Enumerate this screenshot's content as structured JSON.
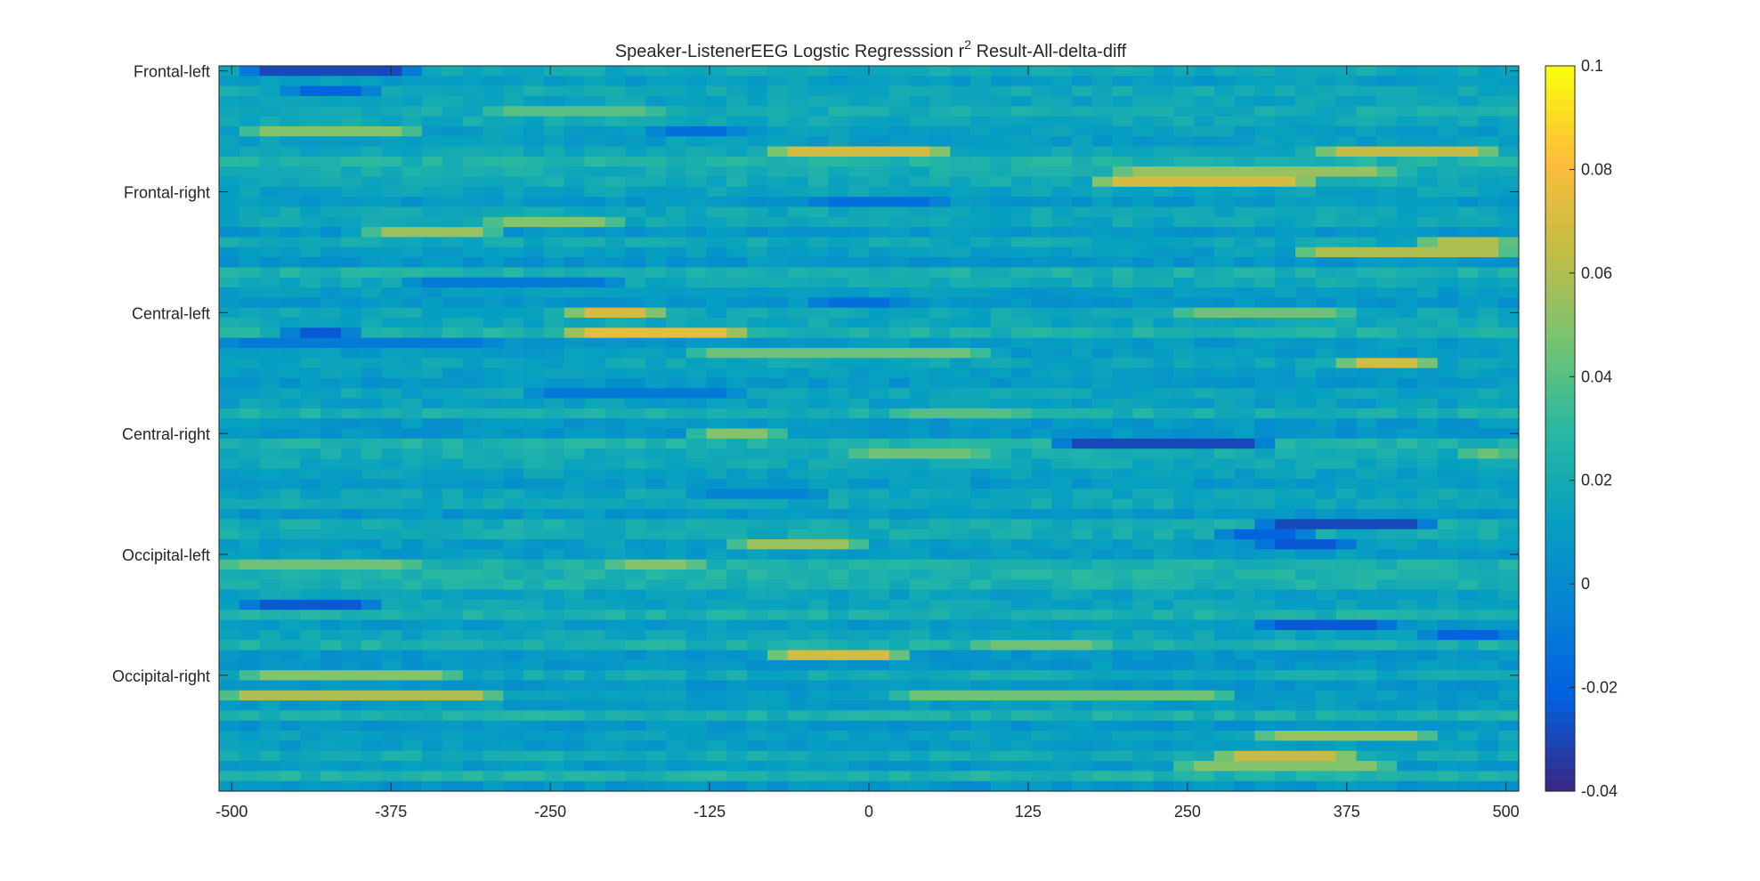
{
  "chart_data": {
    "type": "heatmap",
    "title_main": "Speaker-ListenerEEG Logstic Regresssion r",
    "title_sup": "2",
    "title_rest": " Result-All-delta-diff",
    "x_ticks": [
      -500,
      -375,
      -250,
      -125,
      0,
      125,
      250,
      375,
      500
    ],
    "x_range": [
      -510,
      510
    ],
    "y_labels": [
      "Frontal-left",
      "Frontal-right",
      "Central-left",
      "Central-right",
      "Occipital-left",
      "Occipital-right"
    ],
    "y_label_rows": [
      1,
      13,
      25,
      37,
      49,
      61
    ],
    "n_rows": 72,
    "n_cols": 64,
    "color_range": [
      -0.04,
      0.1
    ],
    "colorbar_ticks": [
      0.1,
      0.08,
      0.06,
      0.04,
      0.02,
      0,
      -0.02,
      -0.04
    ],
    "colormap": "parula",
    "baseline_value": 0.015,
    "bands": [
      {
        "row": 1,
        "col_start": 2,
        "col_end": 10,
        "value": -0.03
      },
      {
        "row": 3,
        "col_start": 4,
        "col_end": 8,
        "value": -0.02
      },
      {
        "row": 5,
        "col_start": 14,
        "col_end": 22,
        "value": 0.04
      },
      {
        "row": 7,
        "col_start": 2,
        "col_end": 10,
        "value": 0.05
      },
      {
        "row": 7,
        "col_start": 22,
        "col_end": 26,
        "value": -0.015
      },
      {
        "row": 9,
        "col_start": 28,
        "col_end": 36,
        "value": 0.07
      },
      {
        "row": 9,
        "col_start": 55,
        "col_end": 63,
        "value": 0.065
      },
      {
        "row": 11,
        "col_start": 45,
        "col_end": 58,
        "value": 0.055
      },
      {
        "row": 12,
        "col_start": 44,
        "col_end": 54,
        "value": 0.07
      },
      {
        "row": 14,
        "col_start": 30,
        "col_end": 36,
        "value": -0.015
      },
      {
        "row": 16,
        "col_start": 14,
        "col_end": 20,
        "value": 0.05
      },
      {
        "row": 17,
        "col_start": 8,
        "col_end": 14,
        "value": 0.055
      },
      {
        "row": 18,
        "col_start": 60,
        "col_end": 64,
        "value": 0.06
      },
      {
        "row": 19,
        "col_start": 54,
        "col_end": 64,
        "value": 0.06
      },
      {
        "row": 22,
        "col_start": 10,
        "col_end": 20,
        "value": -0.01
      },
      {
        "row": 24,
        "col_start": 30,
        "col_end": 34,
        "value": -0.015
      },
      {
        "row": 25,
        "col_start": 18,
        "col_end": 22,
        "value": 0.07
      },
      {
        "row": 25,
        "col_start": 48,
        "col_end": 56,
        "value": 0.045
      },
      {
        "row": 27,
        "col_start": 18,
        "col_end": 26,
        "value": 0.075
      },
      {
        "row": 27,
        "col_start": 4,
        "col_end": 7,
        "value": -0.025
      },
      {
        "row": 28,
        "col_start": 1,
        "col_end": 14,
        "value": -0.01
      },
      {
        "row": 29,
        "col_start": 24,
        "col_end": 38,
        "value": 0.045
      },
      {
        "row": 30,
        "col_start": 56,
        "col_end": 60,
        "value": 0.07
      },
      {
        "row": 33,
        "col_start": 16,
        "col_end": 26,
        "value": -0.01
      },
      {
        "row": 35,
        "col_start": 34,
        "col_end": 40,
        "value": 0.04
      },
      {
        "row": 37,
        "col_start": 24,
        "col_end": 28,
        "value": 0.05
      },
      {
        "row": 38,
        "col_start": 42,
        "col_end": 52,
        "value": -0.03
      },
      {
        "row": 39,
        "col_start": 32,
        "col_end": 38,
        "value": 0.045
      },
      {
        "row": 39,
        "col_start": 62,
        "col_end": 64,
        "value": 0.045
      },
      {
        "row": 43,
        "col_start": 24,
        "col_end": 30,
        "value": -0.005
      },
      {
        "row": 46,
        "col_start": 52,
        "col_end": 60,
        "value": -0.03
      },
      {
        "row": 47,
        "col_start": 50,
        "col_end": 54,
        "value": -0.02
      },
      {
        "row": 48,
        "col_start": 52,
        "col_end": 56,
        "value": -0.025
      },
      {
        "row": 48,
        "col_start": 26,
        "col_end": 32,
        "value": 0.055
      },
      {
        "row": 50,
        "col_start": 1,
        "col_end": 10,
        "value": 0.045
      },
      {
        "row": 50,
        "col_start": 20,
        "col_end": 24,
        "value": 0.05
      },
      {
        "row": 54,
        "col_start": 2,
        "col_end": 8,
        "value": -0.025
      },
      {
        "row": 56,
        "col_start": 52,
        "col_end": 58,
        "value": -0.025
      },
      {
        "row": 57,
        "col_start": 60,
        "col_end": 64,
        "value": -0.02
      },
      {
        "row": 58,
        "col_start": 38,
        "col_end": 44,
        "value": 0.045
      },
      {
        "row": 59,
        "col_start": 28,
        "col_end": 34,
        "value": 0.07
      },
      {
        "row": 61,
        "col_start": 2,
        "col_end": 12,
        "value": 0.05
      },
      {
        "row": 63,
        "col_start": 1,
        "col_end": 14,
        "value": 0.06
      },
      {
        "row": 63,
        "col_start": 34,
        "col_end": 50,
        "value": 0.045
      },
      {
        "row": 67,
        "col_start": 52,
        "col_end": 60,
        "value": 0.055
      },
      {
        "row": 69,
        "col_start": 50,
        "col_end": 56,
        "value": 0.065
      },
      {
        "row": 70,
        "col_start": 48,
        "col_end": 58,
        "value": 0.05
      }
    ]
  }
}
